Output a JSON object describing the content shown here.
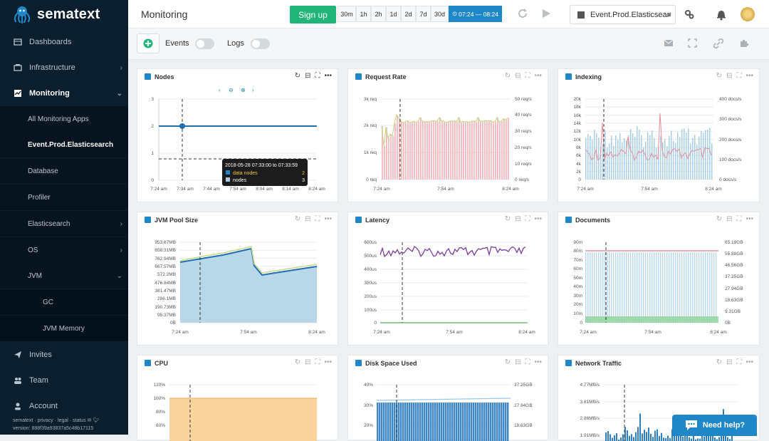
{
  "brand": {
    "name": "sematext"
  },
  "sidebar": {
    "items": [
      {
        "label": "Dashboards"
      },
      {
        "label": "Infrastructure"
      },
      {
        "label": "Monitoring"
      },
      {
        "label": "Invites"
      },
      {
        "label": "Team"
      },
      {
        "label": "Account"
      }
    ],
    "monitoring_sub": [
      {
        "label": "All Monitoring Apps"
      },
      {
        "label": "Event.Prod.Elasticsearch"
      },
      {
        "label": "Database"
      },
      {
        "label": "Profiler"
      },
      {
        "label": "Elasticsearch"
      },
      {
        "label": "OS"
      },
      {
        "label": "JVM"
      }
    ],
    "jvm_sub": [
      {
        "label": "GC"
      },
      {
        "label": "JVM Memory"
      }
    ],
    "footer_links": "sematext · privacy · legal · status",
    "version": "version: 888f39a93837a5c48b17115"
  },
  "header": {
    "title": "Monitoring",
    "signup_label": "Sign up",
    "time_ranges": [
      "30m",
      "1h",
      "2h",
      "1d",
      "2d",
      "7d",
      "30d"
    ],
    "active_range": "07:24 — 08:24",
    "app_name": "Event.Prod.Elasticsear"
  },
  "toolbar": {
    "events_label": "Events",
    "logs_label": "Logs"
  },
  "panels": {
    "nodes": {
      "title": "Nodes",
      "y_ticks": [
        "3",
        "2",
        "1",
        "0"
      ],
      "x_ticks": [
        "7:24 am",
        "7:34 am",
        "7:44 am",
        "7:54 am",
        "8:04 am",
        "8:14 am",
        "8:24 am"
      ],
      "tooltip": {
        "header": "2018-05-28 07:33:00 to 07:33:59",
        "rows": [
          {
            "name": "data nodes",
            "value": "2"
          },
          {
            "name": "nodes",
            "value": "3"
          }
        ]
      }
    },
    "request_rate": {
      "title": "Request Rate",
      "y_ticks": [
        "3k req",
        "2k req",
        "1k req",
        "0 req"
      ],
      "y2_ticks": [
        "50 req/s",
        "40 req/s",
        "30 req/s",
        "20 req/s",
        "10 req/s",
        "0 req/s"
      ],
      "x_ticks": [
        "7:24 am",
        "7:54 am",
        "8:24 am"
      ]
    },
    "indexing": {
      "title": "Indexing",
      "y_ticks": [
        "20k",
        "18k",
        "16k",
        "14k",
        "12k",
        "10k",
        "8k",
        "6k",
        "4k",
        "2k",
        "0"
      ],
      "y2_ticks": [
        "400 docs/s",
        "300 docs/s",
        "200 docs/s",
        "100 docs/s",
        "0 docs/s"
      ],
      "x_ticks": [
        "7:24 am",
        "7:54 am",
        "8:24 am"
      ]
    },
    "jvm_pool": {
      "title": "JVM Pool Size",
      "y_ticks": [
        "953.67MB",
        "858.31MB",
        "762.94MB",
        "667.57MB",
        "572.2MB",
        "476.84MB",
        "381.47MB",
        "286.1MB",
        "190.73MB",
        "95.37MB",
        "0B"
      ],
      "x_ticks": [
        "7:24 am",
        "7:54 am",
        "8:24 am"
      ]
    },
    "latency": {
      "title": "Latency",
      "y_ticks": [
        "600us",
        "500us",
        "400us",
        "300us",
        "200us",
        "100us",
        "0"
      ],
      "x_ticks": [
        "7:24 am",
        "7:54 am",
        "8:24 am"
      ]
    },
    "documents": {
      "title": "Documents",
      "y_ticks": [
        "90m",
        "80m",
        "70m",
        "60m",
        "50m",
        "40m",
        "30m",
        "20m",
        "10m",
        "0"
      ],
      "y2_ticks": [
        "65.19GB",
        "55.88GB",
        "46.56GB",
        "37.25GB",
        "27.94GB",
        "18.63GB",
        "9.31GB",
        "0B"
      ],
      "x_ticks": [
        "7:24 am",
        "7:54 am",
        "8:24 am"
      ]
    },
    "cpu": {
      "title": "CPU",
      "y_ticks": [
        "120%",
        "100%",
        "80%",
        "60%"
      ]
    },
    "disk": {
      "title": "Disk Space Used",
      "y_ticks": [
        "40%",
        "30%",
        "20%"
      ],
      "y2_ticks": [
        "37.25GB",
        "27.94GB",
        "18.63GB"
      ]
    },
    "network": {
      "title": "Network Traffic",
      "y_ticks": [
        "4.77MB/s",
        "3.81MB/s",
        "2.86MB/s",
        "1.91MB/s"
      ]
    }
  },
  "help": {
    "label": "Need help?"
  },
  "colors": {
    "sidebar_bg": "#0a1e2e",
    "accent": "#1f87c8",
    "signup_green": "#21b57a"
  }
}
